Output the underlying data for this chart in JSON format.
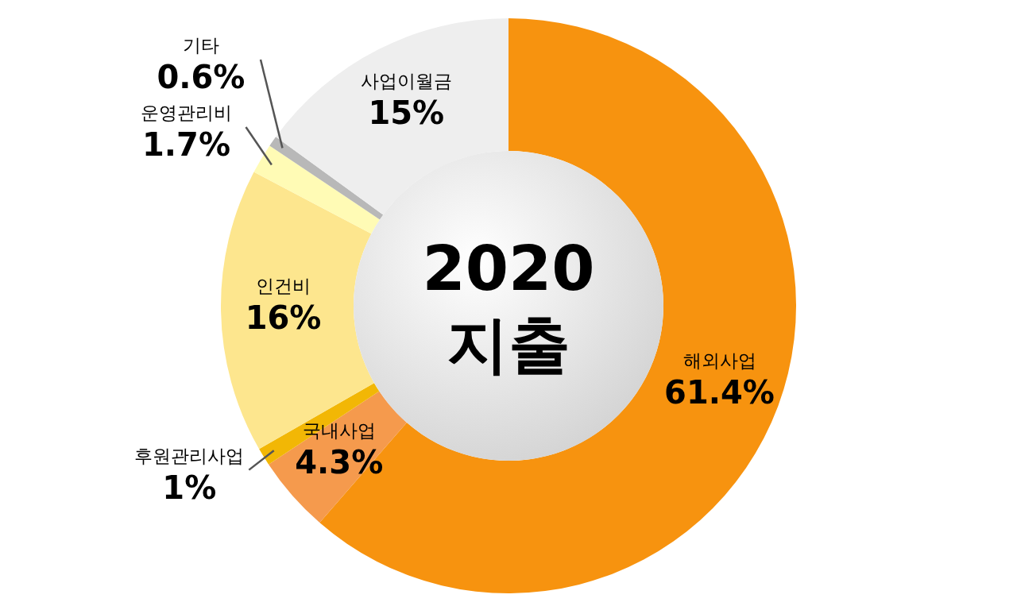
{
  "chart_data": {
    "type": "donut",
    "title": "2020 지출",
    "categories": [
      "해외사업",
      "국내사업",
      "후원관리사업",
      "인건비",
      "운영관리비",
      "기타",
      "사업이월금"
    ],
    "values": [
      61.4,
      4.3,
      1,
      16,
      1.7,
      0.6,
      15
    ],
    "value_labels": [
      "61.4%",
      "4.3%",
      "1%",
      "16%",
      "1.7%",
      "0.6%",
      "15%"
    ],
    "colors": [
      "#f7930f",
      "#f59a4d",
      "#f2b705",
      "#fde68e",
      "#fffbb5",
      "#b8b8b8",
      "#eeeeee"
    ]
  }
}
